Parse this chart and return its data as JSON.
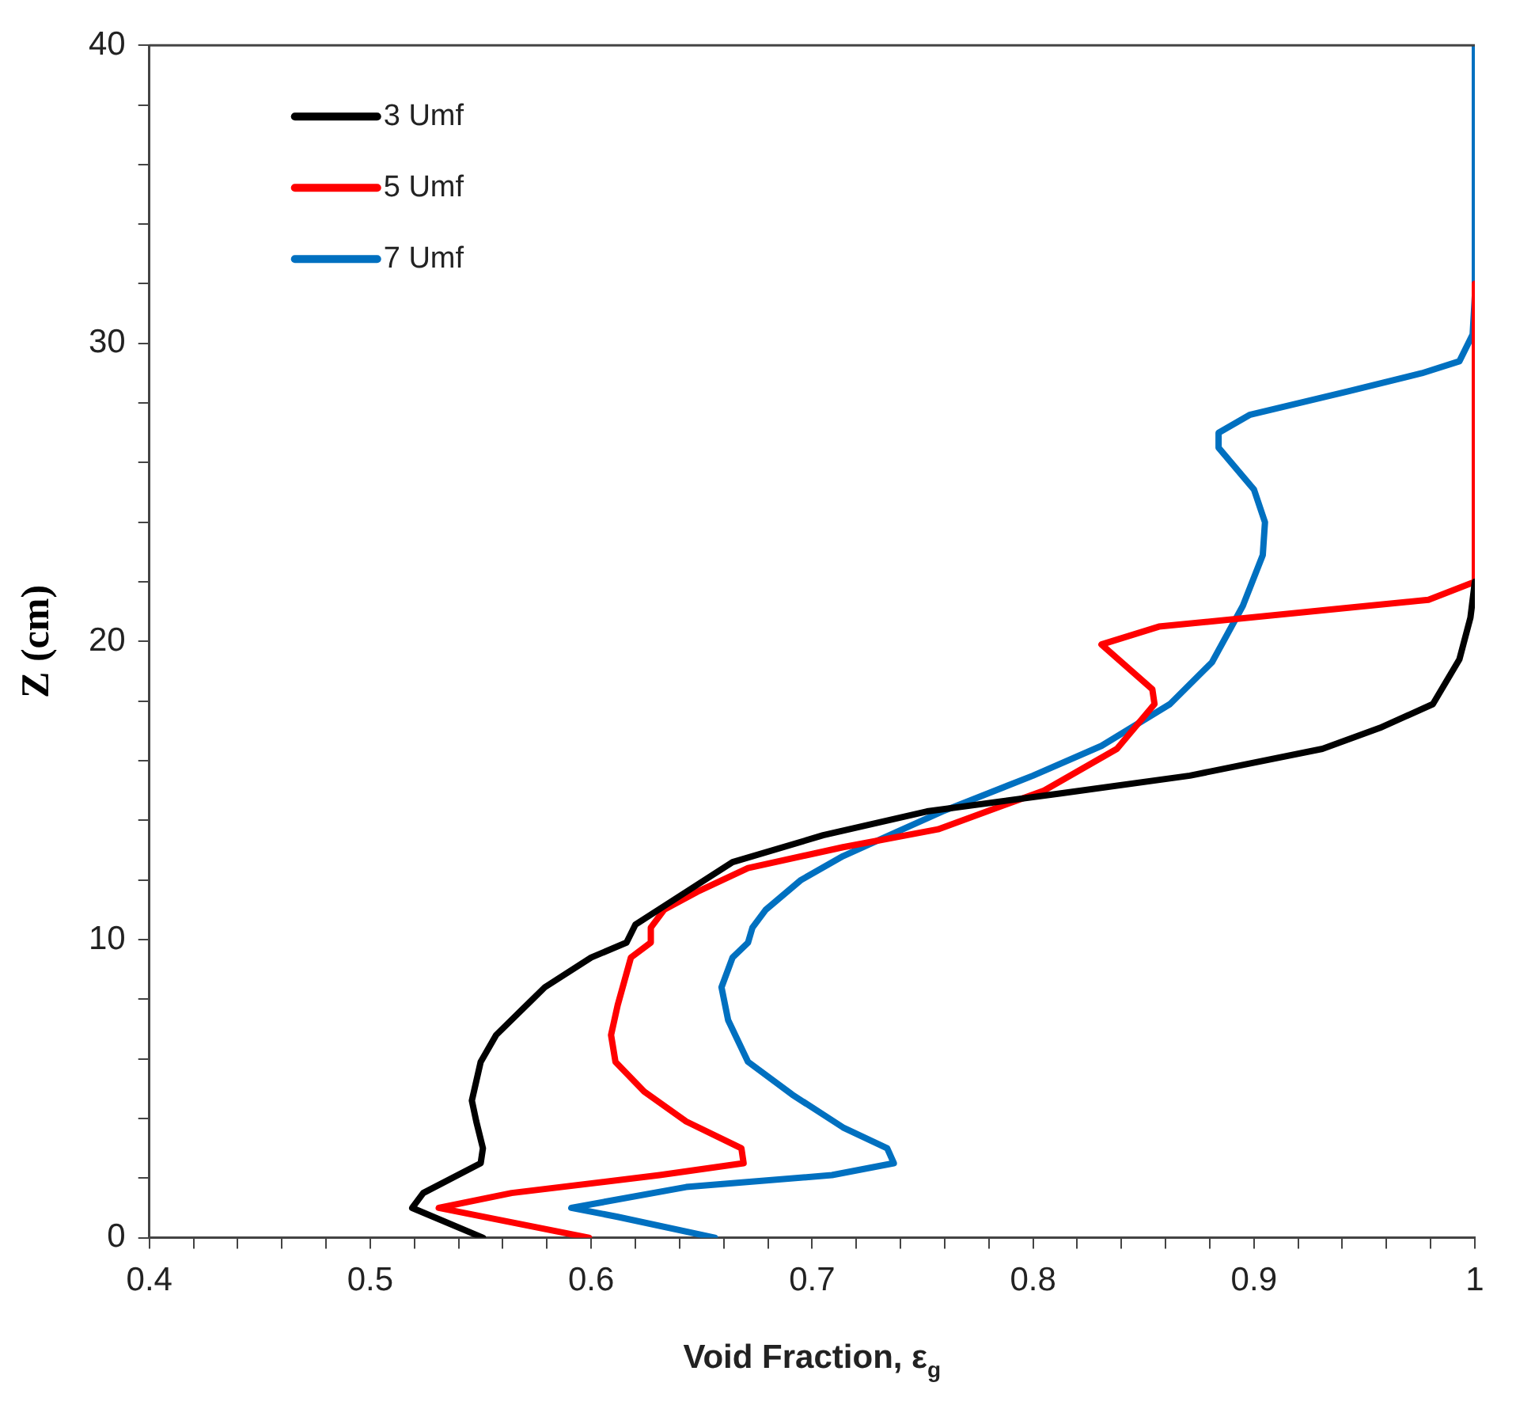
{
  "chart_data": {
    "type": "line",
    "xlabel": "Void Fraction, ε$_{g}$",
    "ylabel": "Z (cm)",
    "xlim": [
      0.4,
      1
    ],
    "ylim": [
      0,
      40
    ],
    "xticks": [
      0.4,
      {
        "value": 0.42,
        "label": null
      },
      {
        "value": 0.44,
        "label": null
      },
      {
        "value": 0.46,
        "label": null
      },
      {
        "value": 0.48,
        "label": null
      },
      0.5,
      {
        "value": 0.52,
        "label": null
      },
      {
        "value": 0.54,
        "label": null
      },
      {
        "value": 0.56,
        "label": null
      },
      {
        "value": 0.58,
        "label": null
      },
      0.6,
      {
        "value": 0.62,
        "label": null
      },
      {
        "value": 0.64,
        "label": null
      },
      {
        "value": 0.66,
        "label": null
      },
      {
        "value": 0.68,
        "label": null
      },
      0.7,
      {
        "value": 0.72,
        "label": null
      },
      {
        "value": 0.74,
        "label": null
      },
      {
        "value": 0.76,
        "label": null
      },
      {
        "value": 0.78,
        "label": null
      },
      0.8,
      {
        "value": 0.82,
        "label": null
      },
      {
        "value": 0.84,
        "label": null
      },
      {
        "value": 0.86,
        "label": null
      },
      {
        "value": 0.88,
        "label": null
      },
      0.9,
      {
        "value": 0.92,
        "label": null
      },
      {
        "value": 0.94,
        "label": null
      },
      {
        "value": 0.96,
        "label": null
      },
      {
        "value": 0.98,
        "label": null
      },
      1
    ],
    "yticks": [
      0,
      {
        "value": 2,
        "label": null
      },
      {
        "value": 4,
        "label": null
      },
      {
        "value": 6,
        "label": null
      },
      {
        "value": 8,
        "label": null
      },
      10,
      {
        "value": 12,
        "label": null
      },
      {
        "value": 14,
        "label": null
      },
      {
        "value": 16,
        "label": null
      },
      {
        "value": 18,
        "label": null
      },
      20,
      {
        "value": 22,
        "label": null
      },
      {
        "value": 24,
        "label": null
      },
      {
        "value": 26,
        "label": null
      },
      {
        "value": 28,
        "label": null
      },
      30,
      {
        "value": 32,
        "label": null
      },
      {
        "value": 34,
        "label": null
      },
      {
        "value": 36,
        "label": null
      },
      {
        "value": 38,
        "label": null
      },
      40
    ],
    "grid": false,
    "legend": "top left",
    "marker": "none",
    "line_style": "solid",
    "series": [
      {
        "name": "3 Umf",
        "color": "#000000",
        "x": [
          0.551,
          0.519,
          0.524,
          0.55,
          0.551,
          0.548,
          0.546,
          0.55,
          0.557,
          0.579,
          0.6,
          0.616,
          0.62,
          0.643,
          0.664,
          0.705,
          0.752,
          0.812,
          0.871,
          0.931,
          0.957,
          0.981,
          0.993,
          0.998,
          1
        ],
        "values": [
          0,
          1,
          1.5,
          2.5,
          3,
          3.9,
          4.6,
          5.9,
          6.8,
          8.4,
          9.4,
          9.9,
          10.5,
          11.6,
          12.6,
          13.5,
          14.3,
          14.9,
          15.5,
          16.4,
          17.1,
          17.9,
          19.4,
          20.8,
          22
        ]
      },
      {
        "name": "5 Umf",
        "color": "#ff0000",
        "x": [
          0.599,
          0.531,
          0.564,
          0.631,
          0.669,
          0.668,
          0.643,
          0.624,
          0.611,
          0.609,
          0.612,
          0.618,
          0.627,
          0.627,
          0.633,
          0.648,
          0.671,
          0.714,
          0.757,
          0.805,
          0.838,
          0.855,
          0.854,
          0.831,
          0.857,
          0.979,
          1,
          1
        ],
        "values": [
          0,
          1,
          1.5,
          2.1,
          2.5,
          3,
          3.9,
          4.9,
          5.9,
          6.8,
          7.8,
          9.4,
          9.9,
          10.4,
          11,
          11.6,
          12.4,
          13.1,
          13.7,
          15,
          16.4,
          17.9,
          18.4,
          19.9,
          20.5,
          21.4,
          22,
          32
        ]
      },
      {
        "name": "7 Umf",
        "color": "#0070c0",
        "x": [
          0.656,
          0.612,
          0.591,
          0.643,
          0.709,
          0.737,
          0.734,
          0.714,
          0.691,
          0.671,
          0.662,
          0.659,
          0.664,
          0.671,
          0.673,
          0.679,
          0.695,
          0.714,
          0.738,
          0.759,
          0.8,
          0.831,
          0.862,
          0.881,
          0.895,
          0.904,
          0.905,
          0.9,
          0.884,
          0.884,
          0.898,
          0.943,
          0.976,
          0.993,
          0.999,
          1,
          1
        ],
        "values": [
          0,
          0.7,
          1,
          1.7,
          2.1,
          2.5,
          3,
          3.7,
          4.8,
          5.9,
          7.3,
          8.4,
          9.4,
          9.9,
          10.4,
          11,
          12,
          12.8,
          13.6,
          14.3,
          15.5,
          16.5,
          17.9,
          19.3,
          21.2,
          22.9,
          24,
          25.1,
          26.5,
          27,
          27.6,
          28.4,
          29,
          29.4,
          30.3,
          31.6,
          40
        ]
      }
    ]
  }
}
